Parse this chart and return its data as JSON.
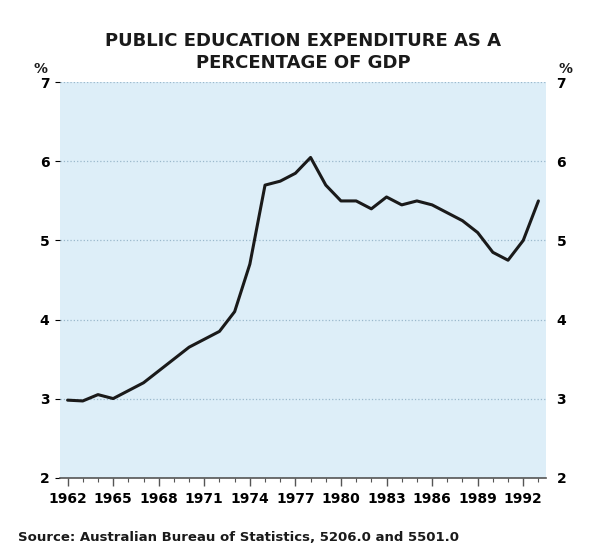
{
  "title": "PUBLIC EDUCATION EXPENDITURE AS A\nPERCENTAGE OF GDP",
  "source_text": "Source: Australian Bureau of Statistics, 5206.0 and 5501.0",
  "fig_bg_color": "#ffffff",
  "plot_bg_color": "#ddeef8",
  "line_color": "#1a1a1a",
  "line_width": 2.2,
  "years": [
    1962,
    1963,
    1964,
    1965,
    1966,
    1967,
    1968,
    1969,
    1970,
    1971,
    1972,
    1973,
    1974,
    1975,
    1976,
    1977,
    1978,
    1979,
    1980,
    1981,
    1982,
    1983,
    1984,
    1985,
    1986,
    1987,
    1988,
    1989,
    1990,
    1991,
    1992,
    1993
  ],
  "values": [
    2.98,
    2.97,
    3.05,
    3.0,
    3.1,
    3.2,
    3.35,
    3.5,
    3.65,
    3.75,
    3.85,
    4.1,
    4.7,
    5.7,
    5.75,
    5.85,
    6.05,
    5.7,
    5.5,
    5.5,
    5.4,
    5.55,
    5.45,
    5.5,
    5.45,
    5.35,
    5.25,
    5.1,
    4.85,
    4.75,
    5.0,
    5.5
  ],
  "xlim": [
    1961.5,
    1993.5
  ],
  "ylim": [
    2,
    7
  ],
  "yticks": [
    2,
    3,
    4,
    5,
    6,
    7
  ],
  "xticks": [
    1962,
    1965,
    1968,
    1971,
    1974,
    1977,
    1980,
    1983,
    1986,
    1989,
    1992
  ],
  "ylabel_left": "%",
  "ylabel_right": "%",
  "grid_color": "#9ab8cc",
  "title_fontsize": 13,
  "tick_fontsize": 10,
  "source_fontsize": 9.5
}
